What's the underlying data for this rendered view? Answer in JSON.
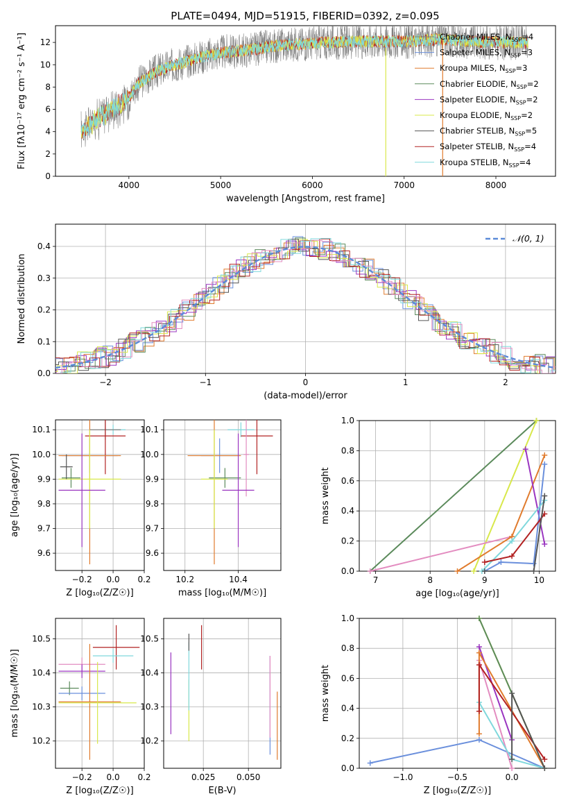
{
  "figure_title": "PLATE=0494, MJD=51915, FIBERID=0392, z=0.095",
  "colors": {
    "chabrier_miles": "#808080",
    "salpeter_miles": "#6a8fdc",
    "kroupa_miles": "#e07b2d",
    "chabrier_elodie": "#5b8a5b",
    "salpeter_elodie": "#9a35c0",
    "kroupa_elodie": "#d8e84a",
    "chabrier_stelib": "#555555",
    "salpeter_stelib": "#b22222",
    "kroupa_stelib": "#7fd8dc",
    "pink": "#e38cc0"
  },
  "chart_data": [
    {
      "type": "line",
      "title": "PLATE=0494, MJD=51915, FIBERID=0392, z=0.095",
      "xlabel": "wavelength [Angstrom, rest frame]",
      "ylabel": "Flux [fλ10⁻¹⁷ erg cm⁻² s⁻¹ A⁻¹]",
      "xlim": [
        3200,
        8650
      ],
      "ylim": [
        0,
        13.5
      ],
      "xticks": [
        4000,
        5000,
        6000,
        7000,
        8000
      ],
      "yticks": [
        0,
        2,
        4,
        6,
        8,
        10,
        12
      ],
      "legend_position": "right",
      "legend": [
        {
          "label": "Chabrier MILES, N",
          "sub": "SSP",
          "tail": "=4"
        },
        {
          "label": "Salpeter MILES, N",
          "sub": "SSP",
          "tail": "=3"
        },
        {
          "label": "Kroupa MILES, N",
          "sub": "SSP",
          "tail": "=3"
        },
        {
          "label": "Chabrier ELODIE, N",
          "sub": "SSP",
          "tail": "=2"
        },
        {
          "label": "Salpeter ELODIE, N",
          "sub": "SSP",
          "tail": "=2"
        },
        {
          "label": "Kroupa ELODIE, N",
          "sub": "SSP",
          "tail": "=2"
        },
        {
          "label": "Chabrier STELIB, N",
          "sub": "SSP",
          "tail": "=5"
        },
        {
          "label": "Salpeter STELIB, N",
          "sub": "SSP",
          "tail": "=4"
        },
        {
          "label": "Kroupa STELIB, N",
          "sub": "SSP",
          "tail": "=4"
        }
      ],
      "spectrum_envelope": {
        "x": [
          3500,
          3650,
          3800,
          3950,
          4100,
          4300,
          4500,
          4800,
          5000,
          5300,
          5600,
          5900,
          6200,
          6500,
          6800,
          7100,
          7400,
          7700,
          8000,
          8300
        ],
        "y": [
          4.2,
          5.2,
          6.0,
          6.5,
          8.3,
          9.4,
          10.0,
          10.7,
          11.1,
          11.3,
          11.7,
          11.9,
          12.0,
          12.1,
          12.1,
          12.1,
          12.3,
          12.1,
          12.0,
          12.0
        ]
      }
    },
    {
      "type": "area",
      "xlabel": "(data-model)/error",
      "ylabel": "Normed distribution",
      "xlim": [
        -2.5,
        2.5
      ],
      "ylim": [
        0,
        0.47
      ],
      "xticks": [
        -2,
        -1,
        0,
        1,
        2
      ],
      "yticks": [
        0.0,
        0.1,
        0.2,
        0.3,
        0.4
      ],
      "grid": true,
      "legend_position": "top-right",
      "reference_label": "𝒩(0, 1)",
      "reference_curve": "N(0,1)"
    },
    {
      "type": "scatter",
      "xlabel": "Z [log₁₀(Z/Z☉)]",
      "ylabel": "age  [log₁₀(age/yr)]",
      "xlim": [
        -0.37,
        0.2
      ],
      "ylim": [
        9.53,
        10.14
      ],
      "xticks": [
        -0.2,
        0.0,
        0.2
      ],
      "yticks": [
        9.6,
        9.7,
        9.8,
        9.9,
        10.0,
        10.1
      ],
      "points": [
        {
          "c": "kroupa_stelib",
          "x": 0.0,
          "xe": 0.08,
          "y": 10.1,
          "ye": 0.02
        },
        {
          "c": "chabrier_miles",
          "x": -0.05,
          "xe": 0.1,
          "y": 10.1,
          "ye": 0.04
        },
        {
          "c": "salpeter_stelib",
          "x": -0.05,
          "xe": 0.13,
          "y": 10.075,
          "ye": 0.155
        },
        {
          "c": "salpeter_miles",
          "x": -0.15,
          "xe": 0.18,
          "y": 9.995,
          "ye": 0.07
        },
        {
          "c": "kroupa_miles",
          "x": -0.15,
          "xe": 0.2,
          "y": 9.995,
          "ye": 0.44
        },
        {
          "c": "chabrier_elodie",
          "x": -0.27,
          "xe": 0.06,
          "y": 9.905,
          "ye": 0.04
        },
        {
          "c": "kroupa_elodie",
          "x": -0.15,
          "xe": 0.2,
          "y": 9.9,
          "ye": 0.2
        },
        {
          "c": "salpeter_elodie",
          "x": -0.2,
          "xe": 0.15,
          "y": 9.855,
          "ye": 0.23
        },
        {
          "c": "chabrier_stelib",
          "x": -0.3,
          "xe": 0.04,
          "y": 9.95,
          "ye": 0.05
        }
      ]
    },
    {
      "type": "scatter",
      "xlabel": "mass [log₁₀(M/M☉)]",
      "ylabel": "",
      "xlim": [
        10.12,
        10.56
      ],
      "ylim": [
        9.53,
        10.14
      ],
      "xticks": [
        10.2,
        10.4
      ],
      "yticks": [
        9.6,
        9.7,
        9.8,
        9.9,
        10.0,
        10.1
      ],
      "points": [
        {
          "c": "kroupa_stelib",
          "x": 10.41,
          "xe": 0.05,
          "y": 10.1,
          "ye": 0.03
        },
        {
          "c": "salpeter_stelib",
          "x": 10.47,
          "xe": 0.06,
          "y": 10.075,
          "ye": 0.155
        },
        {
          "c": "pink",
          "x": 10.43,
          "xe": 0.01,
          "y": 10.0,
          "ye": 0.17
        },
        {
          "c": "salpeter_miles",
          "x": 10.33,
          "xe": 0.07,
          "y": 9.995,
          "ye": 0.07
        },
        {
          "c": "kroupa_miles",
          "x": 10.31,
          "xe": 0.1,
          "y": 9.995,
          "ye": 0.44
        },
        {
          "c": "chabrier_elodie",
          "x": 10.35,
          "xe": 0.06,
          "y": 9.905,
          "ye": 0.04
        },
        {
          "c": "kroupa_elodie",
          "x": 10.31,
          "xe": 0.05,
          "y": 9.9,
          "ye": 0.2
        },
        {
          "c": "salpeter_elodie",
          "x": 10.4,
          "xe": 0.06,
          "y": 9.855,
          "ye": 0.23
        }
      ]
    },
    {
      "type": "line",
      "xlabel": "age  [log₁₀(age/yr)]",
      "ylabel": "mass weight",
      "xlim": [
        6.7,
        10.3
      ],
      "ylim": [
        0,
        1
      ],
      "xticks": [
        7,
        8,
        9,
        10
      ],
      "yticks": [
        0.0,
        0.2,
        0.4,
        0.6,
        0.8,
        1.0
      ],
      "series": [
        {
          "c": "chabrier_elodie",
          "x": [
            6.9,
            9.95
          ],
          "y": [
            0.0,
            1.0
          ]
        },
        {
          "c": "kroupa_elodie",
          "x": [
            8.8,
            9.95
          ],
          "y": [
            0.0,
            1.0
          ]
        },
        {
          "c": "pink",
          "x": [
            6.9,
            9.5
          ],
          "y": [
            0.0,
            0.23
          ]
        },
        {
          "c": "kroupa_miles",
          "x": [
            8.5,
            9.5,
            10.1
          ],
          "y": [
            0.0,
            0.23,
            0.77
          ]
        },
        {
          "c": "salpeter_elodie",
          "x": [
            9.75,
            10.1
          ],
          "y": [
            0.81,
            0.18
          ]
        },
        {
          "c": "salpeter_miles",
          "x": [
            9.0,
            9.3,
            9.9,
            10.1
          ],
          "y": [
            0.0,
            0.06,
            0.05,
            0.71
          ]
        },
        {
          "c": "kroupa_stelib",
          "x": [
            8.95,
            9.5,
            10.1
          ],
          "y": [
            0.0,
            0.2,
            0.47
          ]
        },
        {
          "c": "salpeter_stelib",
          "x": [
            9.0,
            9.5,
            10.1
          ],
          "y": [
            0.06,
            0.1,
            0.38
          ]
        },
        {
          "c": "chabrier_stelib",
          "x": [
            9.0,
            9.9,
            10.1
          ],
          "y": [
            0.0,
            0.0,
            0.5
          ]
        }
      ]
    },
    {
      "type": "scatter",
      "xlabel": "Z [log₁₀(Z/Z☉)]",
      "ylabel": "mass [log₁₀(M/M☉)]",
      "xlim": [
        -0.37,
        0.2
      ],
      "ylim": [
        10.12,
        10.56
      ],
      "xticks": [
        -0.2,
        0.0,
        0.2
      ],
      "yticks": [
        10.2,
        10.3,
        10.4,
        10.5
      ],
      "points": [
        {
          "c": "salpeter_stelib",
          "x": 0.02,
          "xe": 0.15,
          "y": 10.475,
          "ye": 0.065
        },
        {
          "c": "kroupa_stelib",
          "x": 0.0,
          "xe": 0.13,
          "y": 10.45,
          "ye": 0.02
        },
        {
          "c": "pink",
          "x": -0.2,
          "xe": 0.15,
          "y": 10.425,
          "ye": 0.02
        },
        {
          "c": "salpeter_elodie",
          "x": -0.2,
          "xe": 0.15,
          "y": 10.405,
          "ye": 0.02
        },
        {
          "c": "chabrier_elodie",
          "x": -0.28,
          "xe": 0.06,
          "y": 10.355,
          "ye": 0.02
        },
        {
          "c": "salpeter_miles",
          "x": -0.2,
          "xe": 0.15,
          "y": 10.34,
          "ye": 0.02
        },
        {
          "c": "kroupa_miles",
          "x": -0.15,
          "xe": 0.2,
          "y": 10.315,
          "ye": 0.17
        },
        {
          "c": "kroupa_elodie",
          "x": -0.1,
          "xe": 0.25,
          "y": 10.312,
          "ye": 0.12
        }
      ]
    },
    {
      "type": "scatter",
      "xlabel": "E(B-V)",
      "ylabel": "",
      "xlim": [
        0.003,
        0.068
      ],
      "ylim": [
        10.12,
        10.56
      ],
      "xticks": [
        0.025,
        0.05
      ],
      "xticklabels": [
        "0.025",
        "0.050"
      ],
      "yticks": [
        10.2,
        10.3,
        10.4,
        10.5
      ],
      "points": [
        {
          "c": "salpeter_elodie",
          "x": 0.007,
          "y": 10.34,
          "ye": 0.12
        },
        {
          "c": "kroupa_elodie",
          "x": 0.017,
          "y": 10.29,
          "ye": 0.09
        },
        {
          "c": "kroupa_stelib",
          "x": 0.017,
          "y": 10.39,
          "ye": 0.1
        },
        {
          "c": "chabrier_stelib",
          "x": 0.017,
          "y": 10.49,
          "ye": 0.025
        },
        {
          "c": "salpeter_stelib",
          "x": 0.024,
          "y": 10.475,
          "ye": 0.065
        },
        {
          "c": "salpeter_miles",
          "x": 0.062,
          "y": 10.305,
          "ye": 0.145
        },
        {
          "c": "pink",
          "x": 0.062,
          "y": 10.33,
          "ye": 0.12
        },
        {
          "c": "kroupa_miles",
          "x": 0.066,
          "y": 10.245,
          "ye": 0.1
        }
      ]
    },
    {
      "type": "line",
      "xlabel": "Z [log₁₀(Z/Z☉)]",
      "ylabel": "mass weight",
      "xlim": [
        -1.4,
        0.4
      ],
      "ylim": [
        0,
        1
      ],
      "xticks": [
        -1.0,
        -0.5,
        0.0
      ],
      "yticks": [
        0.0,
        0.2,
        0.4,
        0.6,
        0.8,
        1.0
      ],
      "series": [
        {
          "c": "salpeter_miles",
          "x": [
            -1.3,
            -0.3,
            0.3
          ],
          "y": [
            0.035,
            0.19,
            0.0
          ]
        },
        {
          "c": "kroupa_elodie",
          "x": [
            -0.3,
            0.3
          ],
          "y": [
            1.0,
            0.0
          ]
        },
        {
          "c": "chabrier_elodie",
          "x": [
            -0.3,
            0.3
          ],
          "y": [
            1.0,
            0.0
          ]
        },
        {
          "c": "salpeter_elodie",
          "x": [
            -0.3,
            0.0
          ],
          "y": [
            0.81,
            0.19
          ]
        },
        {
          "c": "pink",
          "x": [
            -0.3,
            0.0
          ],
          "y": [
            0.72,
            0.0
          ]
        },
        {
          "c": "kroupa_miles",
          "x": [
            -0.3,
            -0.3,
            0.3
          ],
          "y": [
            0.23,
            0.77,
            0.0
          ]
        },
        {
          "c": "kroupa_stelib",
          "x": [
            -0.3,
            0.0,
            0.3
          ],
          "y": [
            0.44,
            0.06,
            0.0
          ]
        },
        {
          "c": "salpeter_stelib",
          "x": [
            -0.3,
            -0.3,
            0.3
          ],
          "y": [
            0.38,
            0.69,
            0.06
          ]
        },
        {
          "c": "chabrier_stelib",
          "x": [
            0.0,
            0.0,
            0.3
          ],
          "y": [
            0.06,
            0.5,
            0.0
          ]
        }
      ]
    }
  ]
}
